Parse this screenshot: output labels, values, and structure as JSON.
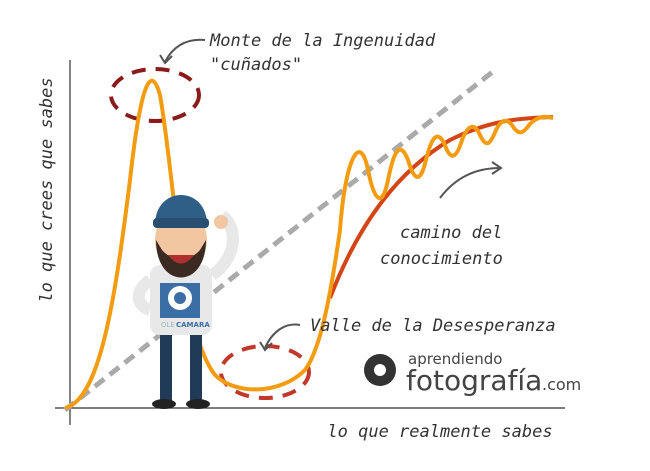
{
  "annotations": {
    "peak": "Monte de la Ingenuidad",
    "peak_note": "\"cuñados\"",
    "valley": "Valle de la Desesperanza",
    "path_line1": "camino del",
    "path_line2": "conocimiento"
  },
  "axes": {
    "y_label": "lo que crees que sabes",
    "x_label": "lo que realmente sabes"
  },
  "logo": {
    "top": "aprendiendo",
    "main": "fotografía",
    "suffix": ".com"
  },
  "shirt": {
    "ole": "OLE",
    "camara": "CAMARA"
  }
}
